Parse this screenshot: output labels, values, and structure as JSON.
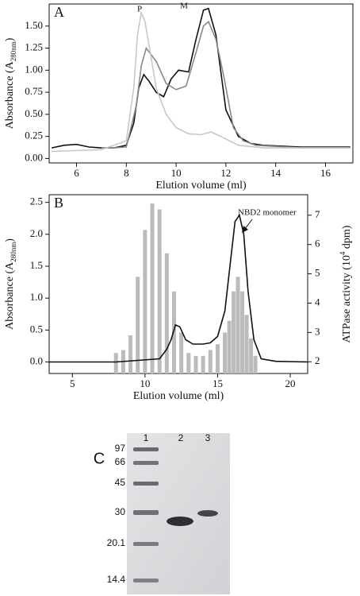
{
  "chart_data": [
    {
      "type": "line",
      "panel": "A",
      "xlabel": "Elution volume (ml)",
      "ylabel": [
        "Absorbance (A",
        "280nm",
        ")"
      ],
      "annotations": [
        "P",
        "M"
      ],
      "xlim": [
        4.9,
        17.1
      ],
      "ylim": [
        -0.05,
        1.75
      ],
      "xticks": [
        6,
        8,
        10,
        12,
        14,
        16
      ],
      "yticks": [
        {
          "value": 0,
          "label": "0.00"
        },
        0.25,
        {
          "value": 0.5,
          "label": "0.50"
        },
        0.75,
        {
          "value": 1,
          "label": "1.00"
        },
        1.25,
        {
          "value": 1.5,
          "label": "1.50"
        }
      ],
      "series": [
        {
          "color": "#111111",
          "x": [
            5,
            5.5,
            6,
            6.5,
            7,
            7.5,
            8,
            8.3,
            8.5,
            8.7,
            8.9,
            9.2,
            9.5,
            9.8,
            10.1,
            10.5,
            10.8,
            11.1,
            11.3,
            11.6,
            12,
            12.5,
            13,
            13.5,
            15,
            17
          ],
          "values": [
            0.12,
            0.15,
            0.16,
            0.13,
            0.12,
            0.12,
            0.15,
            0.4,
            0.8,
            0.95,
            0.88,
            0.75,
            0.7,
            0.9,
            1.0,
            0.98,
            1.35,
            1.68,
            1.7,
            1.4,
            0.55,
            0.25,
            0.17,
            0.15,
            0.13,
            0.13
          ]
        },
        {
          "color": "#888888",
          "x": [
            7,
            7.5,
            8,
            8.4,
            8.6,
            8.8,
            9.2,
            9.6,
            10,
            10.4,
            10.8,
            11.1,
            11.3,
            11.6,
            11.9,
            12.3,
            12.7,
            13.2,
            15,
            17
          ],
          "values": [
            0.12,
            0.12,
            0.13,
            0.6,
            1.05,
            1.25,
            1.1,
            0.85,
            0.78,
            0.82,
            1.2,
            1.5,
            1.55,
            1.35,
            0.95,
            0.35,
            0.2,
            0.15,
            0.12,
            0.12
          ]
        },
        {
          "color": "#c8c8c8",
          "x": [
            5,
            6,
            7,
            8,
            8.3,
            8.45,
            8.6,
            8.75,
            8.9,
            9.2,
            9.6,
            10,
            10.5,
            11,
            11.4,
            11.8,
            12.5,
            13.5,
            15,
            17
          ],
          "values": [
            0.08,
            0.09,
            0.1,
            0.2,
            0.8,
            1.4,
            1.65,
            1.55,
            1.3,
            0.8,
            0.5,
            0.35,
            0.28,
            0.27,
            0.3,
            0.25,
            0.15,
            0.12,
            0.12,
            0.12
          ]
        }
      ]
    },
    {
      "type": "line",
      "panel": "B",
      "xlabel": "Elution volume (ml)",
      "ylabel": [
        "Absorbance (A",
        "280nm",
        ")"
      ],
      "y2label": [
        "ATPase activity (10",
        "4",
        " dpm)"
      ],
      "annotations": [
        "NBD2 monomer"
      ],
      "xlim": [
        3.4,
        21.2
      ],
      "ylim": [
        -0.18,
        2.62
      ],
      "y2lim": [
        1.6,
        7.7
      ],
      "xticks": [
        5,
        10,
        15,
        20
      ],
      "yticks": [
        {
          "value": 0,
          "label": "0.0"
        },
        0.5,
        {
          "value": 1,
          "label": "1.0"
        },
        1.5,
        {
          "value": 2,
          "label": "2.0"
        },
        2.5
      ],
      "y2ticks": [
        2,
        3,
        4,
        5,
        6,
        7
      ],
      "series": [
        {
          "type": "bar",
          "axis": "y2",
          "color": "#bbbbbb",
          "x": [
            8.0,
            8.5,
            9.0,
            9.5,
            10.0,
            10.5,
            11.0,
            11.5,
            12.0,
            12.5,
            13.0,
            13.5,
            14.0,
            14.5,
            15.0,
            15.5,
            15.8,
            16.1,
            16.4,
            16.7,
            17.0,
            17.3,
            17.6
          ],
          "values": [
            2.3,
            2.4,
            2.9,
            4.9,
            6.5,
            7.4,
            7.2,
            5.7,
            4.4,
            3.0,
            2.3,
            2.2,
            2.2,
            2.4,
            2.6,
            3.0,
            3.4,
            4.4,
            4.9,
            4.4,
            3.6,
            2.8,
            2.2
          ]
        },
        {
          "color": "#111111",
          "x": [
            3.4,
            8,
            11,
            11.5,
            11.8,
            12.1,
            12.4,
            12.8,
            13.3,
            14,
            14.5,
            15,
            15.5,
            15.9,
            16.2,
            16.5,
            16.8,
            17.1,
            17.5,
            18,
            19,
            21.2
          ],
          "values": [
            0.0,
            0.0,
            0.05,
            0.2,
            0.35,
            0.58,
            0.55,
            0.35,
            0.28,
            0.28,
            0.3,
            0.4,
            0.8,
            1.6,
            2.2,
            2.3,
            2.0,
            1.1,
            0.35,
            0.05,
            0.01,
            0.0
          ]
        }
      ]
    }
  ],
  "gel": {
    "panel": "C",
    "lanes": [
      "1",
      "2",
      "3"
    ],
    "markers": [
      "97",
      "66",
      "45",
      "30",
      "20.1",
      "14.4"
    ]
  }
}
